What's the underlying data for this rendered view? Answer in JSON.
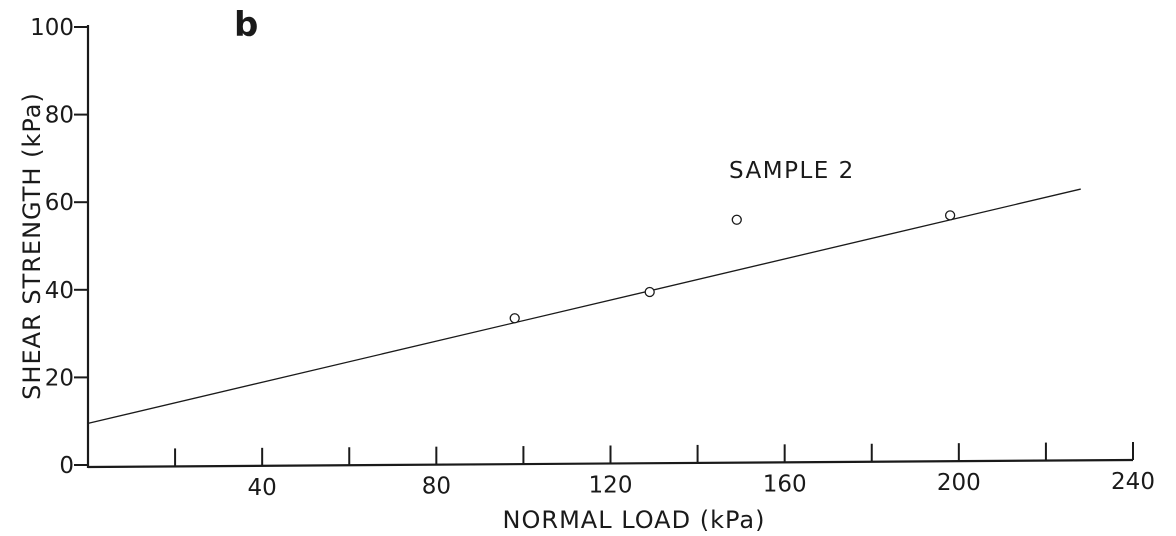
{
  "chart_data": {
    "type": "scatter",
    "panel_label": "b",
    "xlabel": "NORMAL LOAD (kPa)",
    "ylabel": "SHEAR STRENGTH (kPa)",
    "xlim": [
      0,
      240
    ],
    "ylim": [
      0,
      100
    ],
    "x_ticks": [
      20,
      40,
      60,
      80,
      100,
      120,
      140,
      160,
      180,
      200,
      220,
      240
    ],
    "x_tick_labels": [
      {
        "x": 40,
        "label": "40"
      },
      {
        "x": 80,
        "label": "80"
      },
      {
        "x": 120,
        "label": "120"
      },
      {
        "x": 160,
        "label": "160"
      },
      {
        "x": 200,
        "label": "200"
      },
      {
        "x": 240,
        "label": "240"
      }
    ],
    "y_ticks": [
      {
        "y": 0,
        "label": "0"
      },
      {
        "y": 20,
        "label": "20"
      },
      {
        "y": 40,
        "label": "40"
      },
      {
        "y": 60,
        "label": "60"
      },
      {
        "y": 80,
        "label": "80"
      },
      {
        "y": 100,
        "label": "100"
      }
    ],
    "annotation": "SAMPLE 2",
    "series": [
      {
        "points": [
          {
            "x": 98,
            "y": 33.5
          },
          {
            "x": 129,
            "y": 39.5
          },
          {
            "x": 149,
            "y": 56
          },
          {
            "x": 198,
            "y": 57
          }
        ]
      }
    ],
    "fit_line": {
      "x": [
        0,
        228
      ],
      "y": [
        9.5,
        63
      ]
    },
    "grid": false
  }
}
